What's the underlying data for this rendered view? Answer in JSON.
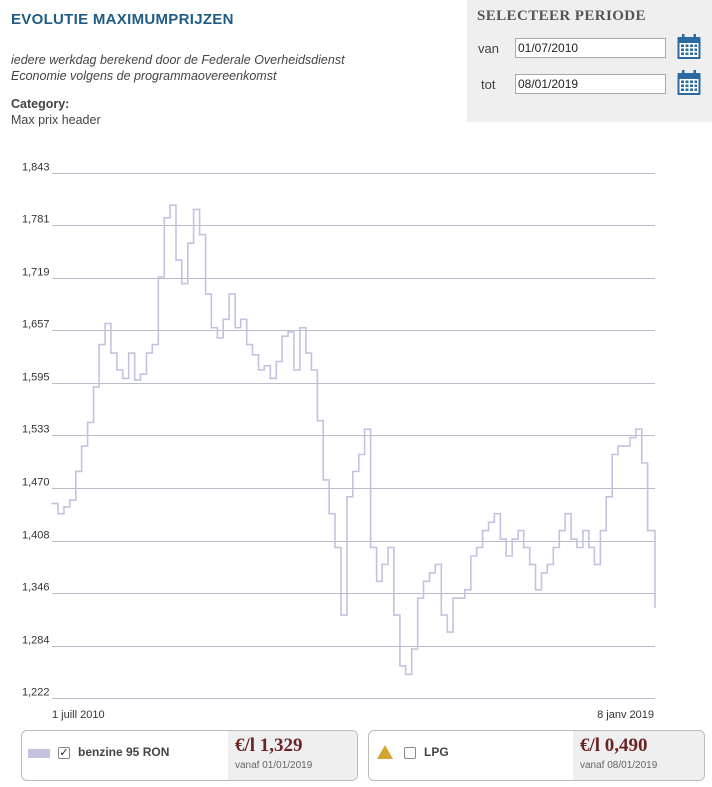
{
  "header": {
    "title": "EVOLUTIE MAXIMUMPRIJZEN",
    "subtitle_line1": "iedere werkdag berekend door de Federale Overheidsdienst",
    "subtitle_line2": "Economie volgens de programmaovereenkomst",
    "category_label": "Category:",
    "category_value": "Max prix header"
  },
  "period": {
    "title": "SELECTEER PERIODE",
    "from_label": "van",
    "from_value": "01/07/2010",
    "to_label": "tot",
    "to_value": "08/01/2019"
  },
  "colors": {
    "series_line": "#c3c3e0",
    "gridline": "#b9bcc9",
    "title_blue": "#1f5c86",
    "price_red": "#6b2424",
    "calendar_blue": "#2a6aa0",
    "lpg_triangle": "#d2a531"
  },
  "legend": [
    {
      "name": "benzine 95 RON",
      "checked": true,
      "marker": "square",
      "price": "€/l 1,329",
      "since": "vanaf 01/01/2019"
    },
    {
      "name": "LPG",
      "checked": false,
      "marker": "triangle",
      "price": "€/l 0,490",
      "since": "vanaf 08/01/2019"
    }
  ],
  "chart_data": {
    "type": "line",
    "step": true,
    "x_start_label": "1 juill 2010",
    "x_end_label": "8 janv 2019",
    "ylim": [
      1.222,
      1.843
    ],
    "yticks": [
      1.843,
      1.781,
      1.719,
      1.657,
      1.595,
      1.533,
      1.47,
      1.408,
      1.346,
      1.284,
      1.222
    ],
    "ytick_labels": [
      "1,843",
      "1,781",
      "1,719",
      "1,657",
      "1,595",
      "1,533",
      "1,470",
      "1,408",
      "1,346",
      "1,284",
      "1,222"
    ],
    "grid": true,
    "series": [
      {
        "visible": true,
        "x": [
          "2010-07-01",
          "2010-08-01",
          "2010-09-01",
          "2010-10-01",
          "2010-11-01",
          "2010-12-01",
          "2011-01-01",
          "2011-02-01",
          "2011-03-01",
          "2011-04-01",
          "2011-05-01",
          "2011-06-01",
          "2011-07-01",
          "2011-08-01",
          "2011-09-01",
          "2011-10-01",
          "2011-11-01",
          "2011-12-01",
          "2012-01-01",
          "2012-02-01",
          "2012-03-01",
          "2012-04-01",
          "2012-05-01",
          "2012-06-01",
          "2012-07-01",
          "2012-08-01",
          "2012-09-01",
          "2012-10-01",
          "2012-11-01",
          "2012-12-01",
          "2013-01-01",
          "2013-02-01",
          "2013-03-01",
          "2013-04-01",
          "2013-05-01",
          "2013-06-01",
          "2013-07-01",
          "2013-08-01",
          "2013-09-01",
          "2013-10-01",
          "2013-11-01",
          "2013-12-01",
          "2014-01-01",
          "2014-02-01",
          "2014-03-01",
          "2014-04-01",
          "2014-05-01",
          "2014-06-01",
          "2014-07-01",
          "2014-08-01",
          "2014-09-01",
          "2014-10-01",
          "2014-11-01",
          "2014-12-01",
          "2015-01-01",
          "2015-02-01",
          "2015-03-01",
          "2015-04-01",
          "2015-05-01",
          "2015-06-01",
          "2015-07-01",
          "2015-08-01",
          "2015-09-01",
          "2015-10-01",
          "2015-11-01",
          "2015-12-01",
          "2016-01-01",
          "2016-02-01",
          "2016-03-01",
          "2016-04-01",
          "2016-05-01",
          "2016-06-01",
          "2016-07-01",
          "2016-08-01",
          "2016-09-01",
          "2016-10-01",
          "2016-11-01",
          "2016-12-01",
          "2017-01-01",
          "2017-02-01",
          "2017-03-01",
          "2017-04-01",
          "2017-05-01",
          "2017-06-01",
          "2017-07-01",
          "2017-08-01",
          "2017-09-01",
          "2017-10-01",
          "2017-11-01",
          "2017-12-01",
          "2018-01-01",
          "2018-02-01",
          "2018-03-01",
          "2018-04-01",
          "2018-05-01",
          "2018-06-01",
          "2018-07-01",
          "2018-08-01",
          "2018-09-01",
          "2018-10-01",
          "2018-11-01",
          "2018-12-01",
          "2019-01-08"
        ],
        "values": [
          1.452,
          1.44,
          1.448,
          1.456,
          1.49,
          1.52,
          1.548,
          1.59,
          1.64,
          1.665,
          1.63,
          1.61,
          1.6,
          1.63,
          1.598,
          1.605,
          1.63,
          1.64,
          1.72,
          1.79,
          1.805,
          1.74,
          1.712,
          1.76,
          1.8,
          1.77,
          1.7,
          1.66,
          1.648,
          1.67,
          1.7,
          1.66,
          1.67,
          1.64,
          1.628,
          1.61,
          1.615,
          1.6,
          1.62,
          1.65,
          1.655,
          1.61,
          1.66,
          1.63,
          1.61,
          1.55,
          1.48,
          1.44,
          1.4,
          1.32,
          1.46,
          1.49,
          1.51,
          1.54,
          1.4,
          1.36,
          1.38,
          1.4,
          1.32,
          1.26,
          1.25,
          1.28,
          1.34,
          1.36,
          1.37,
          1.38,
          1.32,
          1.3,
          1.34,
          1.34,
          1.35,
          1.39,
          1.4,
          1.42,
          1.43,
          1.44,
          1.41,
          1.39,
          1.41,
          1.42,
          1.4,
          1.38,
          1.35,
          1.37,
          1.38,
          1.4,
          1.42,
          1.44,
          1.41,
          1.4,
          1.42,
          1.4,
          1.38,
          1.42,
          1.46,
          1.51,
          1.52,
          1.52,
          1.53,
          1.54,
          1.5,
          1.42,
          1.329
        ]
      }
    ]
  }
}
